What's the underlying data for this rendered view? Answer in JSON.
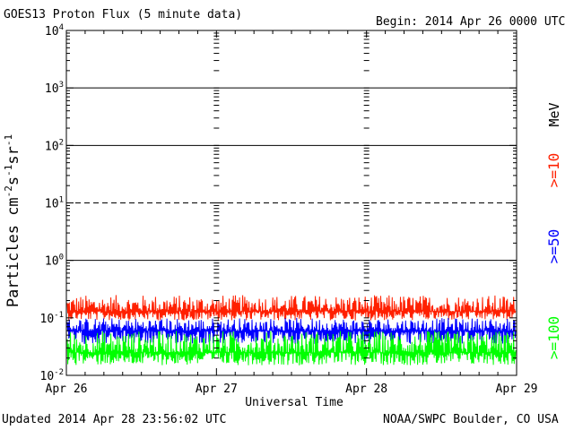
{
  "header": {
    "title": "GOES13 Proton Flux (5 minute data)",
    "begin": "Begin: 2014 Apr 26 0000 UTC"
  },
  "footer": {
    "updated": "Updated 2014 Apr 28 23:56:02 UTC",
    "credit": "NOAA/SWPC Boulder, CO USA"
  },
  "chart_data": {
    "type": "line",
    "title": "GOES13 Proton Flux (5 minute data)",
    "xlabel": "Universal Time",
    "ylabel_parts": [
      "Particles cm",
      "-2",
      "s",
      "-1",
      "sr",
      "-1"
    ],
    "y_scale": "log",
    "ylim": [
      0.01,
      10000
    ],
    "y_ticks": [
      {
        "base": "10",
        "exp": "-2",
        "value": 0.01
      },
      {
        "base": "10",
        "exp": "-1",
        "value": 0.1
      },
      {
        "base": "10",
        "exp": "0",
        "value": 1
      },
      {
        "base": "10",
        "exp": "1",
        "value": 10
      },
      {
        "base": "10",
        "exp": "2",
        "value": 100
      },
      {
        "base": "10",
        "exp": "3",
        "value": 1000
      },
      {
        "base": "10",
        "exp": "4",
        "value": 10000
      }
    ],
    "x_ticks": [
      "Apr 26",
      "Apr 27",
      "Apr 28",
      "Apr 29"
    ],
    "reference_lines": [
      {
        "value": 1,
        "style": "solid"
      },
      {
        "value": 10,
        "style": "dashed"
      },
      {
        "value": 100,
        "style": "solid"
      },
      {
        "value": 1000,
        "style": "solid"
      }
    ],
    "unit_label": "MeV",
    "series": [
      {
        "name": ">=10",
        "color": "#ff2000",
        "base": 0.13,
        "spread_low": 0.09,
        "spread_high": 0.25
      },
      {
        "name": ">=50",
        "color": "#0000ff",
        "base": 0.06,
        "spread_low": 0.035,
        "spread_high": 0.1
      },
      {
        "name": ">=100",
        "color": "#00ff00",
        "base": 0.025,
        "spread_low": 0.015,
        "spread_high": 0.06
      }
    ]
  }
}
